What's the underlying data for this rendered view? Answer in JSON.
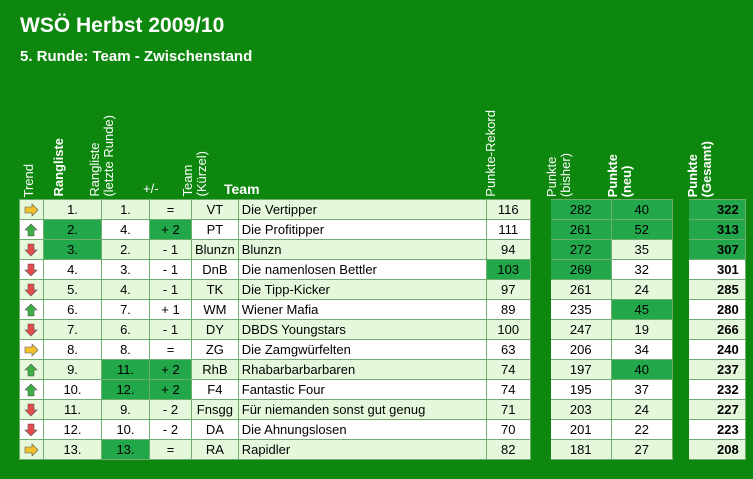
{
  "title": "WSÖ Herbst 2009/10",
  "subtitle": "5. Runde: Team - Zwischenstand",
  "headers": {
    "trend": "Trend",
    "rangliste": "Rangliste",
    "rangliste_letzte_1": "Rangliste",
    "rangliste_letzte_2": "(letzte Runde)",
    "change": "+/-",
    "kuerzel_1": "Team",
    "kuerzel_2": "(Kürzel)",
    "team": "Team",
    "rekord": "Punkte-Rekord",
    "bisher_1": "Punkte",
    "bisher_2": "(bisher)",
    "neu_1": "Punkte",
    "neu_2": "(neu)",
    "gesamt_1": "Punkte",
    "gesamt_2": "(Gesamt)"
  },
  "colors": {
    "up": "#3cb043",
    "down": "#e34b4b",
    "same": "#f2c12e",
    "highlight": "#22a84a"
  },
  "rows": [
    {
      "trend": "same",
      "rank": "1.",
      "last": "1.",
      "change": "=",
      "abbr": "VT",
      "team": "Die Vertipper",
      "rekord": "116",
      "bisher": "282",
      "neu": "40",
      "gesamt": "322",
      "hl": [
        "bisher",
        "neu",
        "gesamt"
      ]
    },
    {
      "trend": "up",
      "rank": "2.",
      "last": "4.",
      "change": "+ 2",
      "abbr": "PT",
      "team": "Die Profitipper",
      "rekord": "111",
      "bisher": "261",
      "neu": "52",
      "gesamt": "313",
      "hl": [
        "rank",
        "change",
        "bisher",
        "neu",
        "gesamt"
      ]
    },
    {
      "trend": "down",
      "rank": "3.",
      "last": "2.",
      "change": "- 1",
      "abbr": "Blunzn",
      "team": "Blunzn",
      "rekord": "94",
      "bisher": "272",
      "neu": "35",
      "gesamt": "307",
      "hl": [
        "rank",
        "bisher",
        "gesamt"
      ]
    },
    {
      "trend": "down",
      "rank": "4.",
      "last": "3.",
      "change": "- 1",
      "abbr": "DnB",
      "team": "Die namenlosen Bettler",
      "rekord": "103",
      "bisher": "269",
      "neu": "32",
      "gesamt": "301",
      "hl": [
        "rekord",
        "bisher"
      ]
    },
    {
      "trend": "down",
      "rank": "5.",
      "last": "4.",
      "change": "- 1",
      "abbr": "TK",
      "team": "Die Tipp-Kicker",
      "rekord": "97",
      "bisher": "261",
      "neu": "24",
      "gesamt": "285",
      "hl": []
    },
    {
      "trend": "up",
      "rank": "6.",
      "last": "7.",
      "change": "+ 1",
      "abbr": "WM",
      "team": "Wiener Mafia",
      "rekord": "89",
      "bisher": "235",
      "neu": "45",
      "gesamt": "280",
      "hl": [
        "neu"
      ]
    },
    {
      "trend": "down",
      "rank": "7.",
      "last": "6.",
      "change": "- 1",
      "abbr": "DY",
      "team": "DBDS Youngstars",
      "rekord": "100",
      "bisher": "247",
      "neu": "19",
      "gesamt": "266",
      "hl": []
    },
    {
      "trend": "same",
      "rank": "8.",
      "last": "8.",
      "change": "=",
      "abbr": "ZG",
      "team": "Die Zamgwürfelten",
      "rekord": "63",
      "bisher": "206",
      "neu": "34",
      "gesamt": "240",
      "hl": []
    },
    {
      "trend": "up",
      "rank": "9.",
      "last": "11.",
      "change": "+ 2",
      "abbr": "RhB",
      "team": "Rhabarbarbarbaren",
      "rekord": "74",
      "bisher": "197",
      "neu": "40",
      "gesamt": "237",
      "hl": [
        "last",
        "change",
        "neu"
      ]
    },
    {
      "trend": "up",
      "rank": "10.",
      "last": "12.",
      "change": "+ 2",
      "abbr": "F4",
      "team": "Fantastic Four",
      "rekord": "74",
      "bisher": "195",
      "neu": "37",
      "gesamt": "232",
      "hl": [
        "last",
        "change"
      ]
    },
    {
      "trend": "down",
      "rank": "11.",
      "last": "9.",
      "change": "- 2",
      "abbr": "Fnsgg",
      "team": "Für niemanden sonst gut genug",
      "rekord": "71",
      "bisher": "203",
      "neu": "24",
      "gesamt": "227",
      "hl": []
    },
    {
      "trend": "down",
      "rank": "12.",
      "last": "10.",
      "change": "- 2",
      "abbr": "DA",
      "team": "Die Ahnungslosen",
      "rekord": "70",
      "bisher": "201",
      "neu": "22",
      "gesamt": "223",
      "hl": []
    },
    {
      "trend": "same",
      "rank": "13.",
      "last": "13.",
      "change": "=",
      "abbr": "RA",
      "team": "Rapidler",
      "rekord": "82",
      "bisher": "181",
      "neu": "27",
      "gesamt": "208",
      "hl": [
        "last"
      ]
    }
  ]
}
